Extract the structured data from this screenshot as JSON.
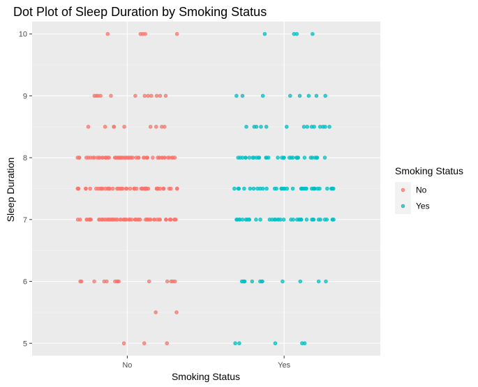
{
  "chart_data": {
    "type": "scatter",
    "title": "Dot Plot of Sleep Duration by Smoking Status",
    "xlabel": "Smoking Status",
    "ylabel": "Sleep Duration",
    "categories": [
      "No",
      "Yes"
    ],
    "ylim": [
      4.8,
      10.2
    ],
    "yticks": [
      5,
      6,
      7,
      8,
      9,
      10
    ],
    "legend": {
      "title": "Smoking Status",
      "placement": "right",
      "entries": [
        "No",
        "Yes"
      ]
    },
    "colors": {
      "No": "#f8766d",
      "Yes": "#00bfc4"
    },
    "panel_background": "#ebebeb",
    "grid": true,
    "jitter_width": 0.32,
    "series": [
      {
        "name": "No",
        "category": "No",
        "points": [
          {
            "y": 10,
            "n": 5
          },
          {
            "y": 9,
            "n": 12
          },
          {
            "y": 8.5,
            "n": 9
          },
          {
            "y": 8,
            "n": 60
          },
          {
            "y": 7.5,
            "n": 55
          },
          {
            "y": 7,
            "n": 70
          },
          {
            "y": 6,
            "n": 14
          },
          {
            "y": 5.5,
            "n": 2
          },
          {
            "y": 5,
            "n": 3
          }
        ]
      },
      {
        "name": "Yes",
        "category": "Yes",
        "points": [
          {
            "y": 10,
            "n": 4
          },
          {
            "y": 9,
            "n": 8
          },
          {
            "y": 8.5,
            "n": 14
          },
          {
            "y": 8,
            "n": 32
          },
          {
            "y": 7.5,
            "n": 36
          },
          {
            "y": 7,
            "n": 38
          },
          {
            "y": 6,
            "n": 12
          },
          {
            "y": 5,
            "n": 5
          }
        ]
      }
    ]
  }
}
